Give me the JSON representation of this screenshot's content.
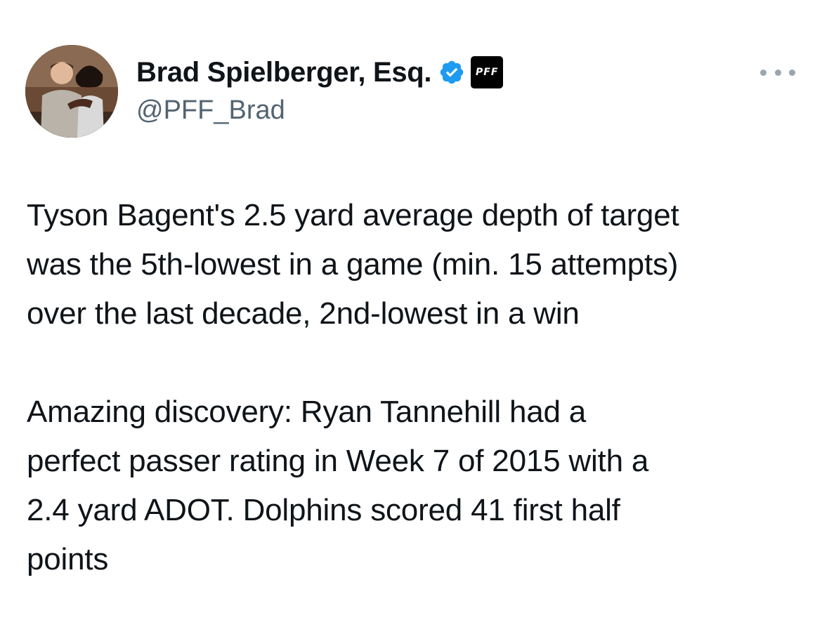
{
  "author": {
    "display_name": "Brad Spielberger, Esq.",
    "handle": "@PFF_Brad",
    "verified": true,
    "verified_color": "#1d9bf0",
    "affiliation_badge": "PFF",
    "avatar_icon": "profile-photo"
  },
  "menu": {
    "more_icon": "more-horizontal-icon"
  },
  "tweet": {
    "paragraph1_lines": [
      "Tyson Bagent's 2.5 yard average depth of target",
      "was the 5th-lowest in a game (min. 15 attempts)",
      "over the last decade, 2nd-lowest in a win"
    ],
    "paragraph2_lines": [
      "Amazing discovery: Ryan Tannehill had a",
      "perfect passer rating in Week 7 of 2015 with a",
      "2.4 yard ADOT. Dolphins scored 41 first half",
      "points"
    ]
  },
  "colors": {
    "text_primary": "#0f1419",
    "text_secondary": "#536471",
    "background": "#ffffff"
  }
}
